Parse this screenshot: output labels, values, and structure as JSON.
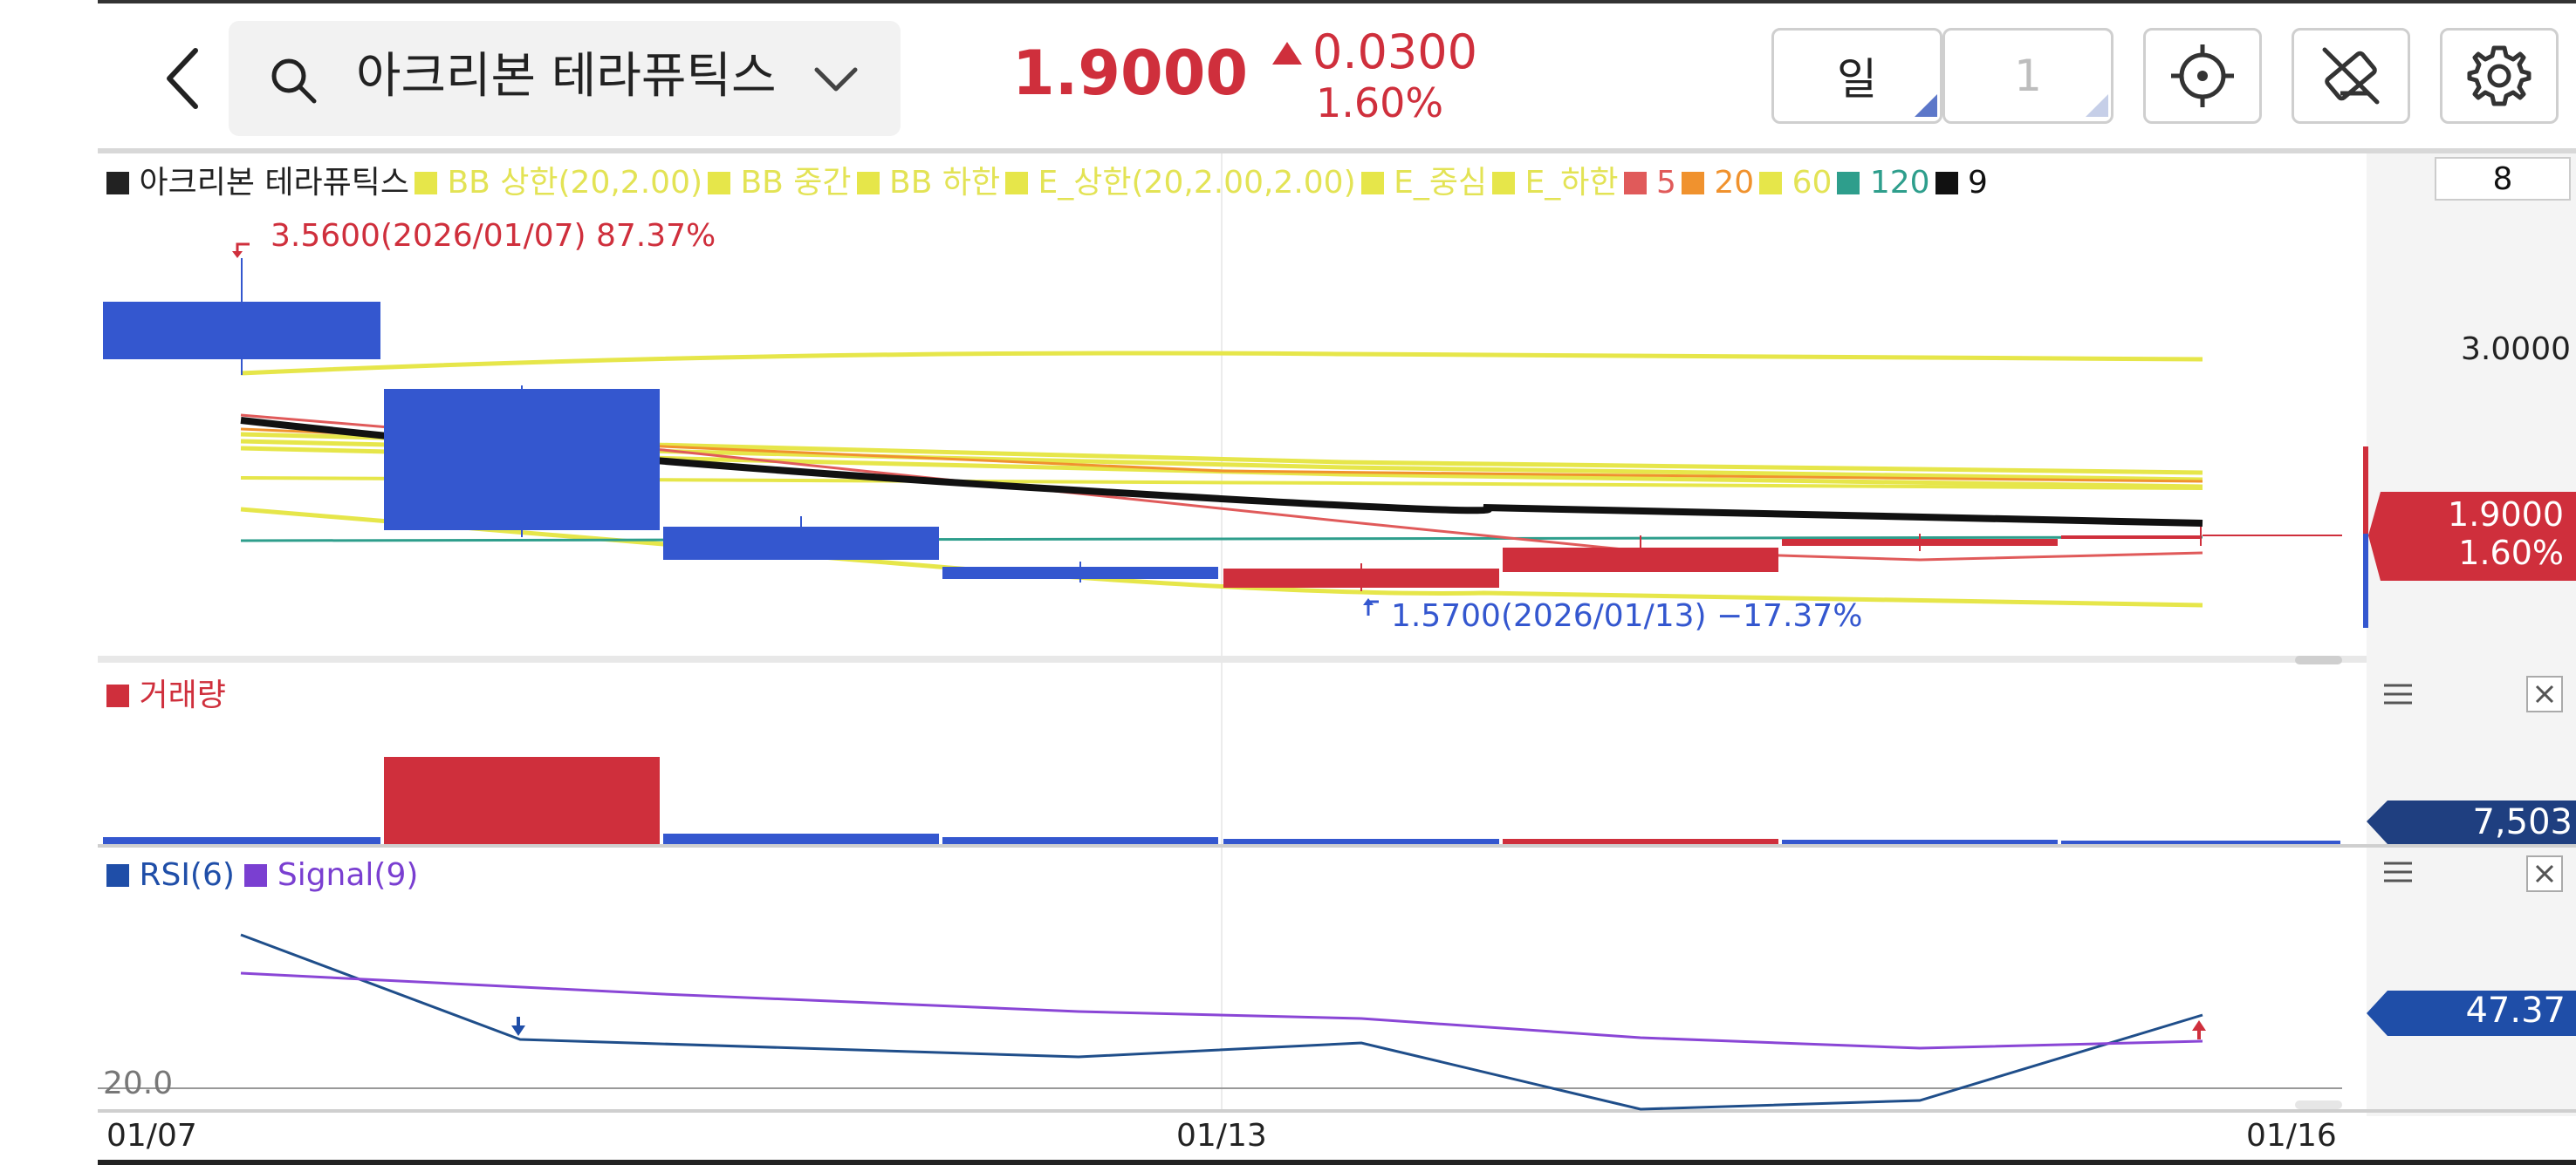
{
  "header": {
    "stock_name": "아크리본 테라퓨틱스",
    "price": "1.9000",
    "change": "0.0300",
    "change_pct": "1.60%",
    "period_label": "일",
    "period_count": "1",
    "icons": [
      "back-icon",
      "search-icon",
      "chevron-down-icon",
      "crosshair-icon",
      "drawing-tools-off-icon",
      "gear-icon"
    ]
  },
  "main_panel": {
    "legend": [
      {
        "label": "아크리본 테라퓨틱스",
        "color": "#222222",
        "text_color": "#222222"
      },
      {
        "label": "BB 상한(20,2.00)",
        "color": "#e6e64a",
        "text_color": "#e3e355"
      },
      {
        "label": "BB 중간",
        "color": "#e6e64a",
        "text_color": "#e3e355"
      },
      {
        "label": "BB 하한",
        "color": "#e6e64a",
        "text_color": "#e3e355"
      },
      {
        "label": "E_상한(20,2.00,2.00)",
        "color": "#e6e64a",
        "text_color": "#e3e355"
      },
      {
        "label": "E_중심",
        "color": "#e6e64a",
        "text_color": "#e3e355"
      },
      {
        "label": "E_하한",
        "color": "#e6e64a",
        "text_color": "#e3e355"
      },
      {
        "label": "5",
        "color": "#e05a5a",
        "text_color": "#e05a5a"
      },
      {
        "label": "20",
        "color": "#f0922e",
        "text_color": "#f0922e"
      },
      {
        "label": "60",
        "color": "#e6e64a",
        "text_color": "#e3e355"
      },
      {
        "label": "120",
        "color": "#2e9e8c",
        "text_color": "#2e9e8c"
      },
      {
        "label": "9",
        "color": "#111111",
        "text_color": "#111111"
      }
    ],
    "high_annotation": "3.5600(2026/01/07) 87.37%",
    "low_annotation": "1.5700(2026/01/13) −17.37%",
    "top_right_box": "8",
    "axis_value": "3.0000",
    "price_tag_value": "1.9000",
    "price_tag_pct": "1.60%",
    "colors": {
      "up": "#cf2f3c",
      "down": "#3457cf",
      "black_line": "#111111",
      "bb": "#e6e64a"
    }
  },
  "volume_panel": {
    "legend": "거래량",
    "tag_value": "7,503",
    "menu_icon": "hamburger-icon",
    "close_icon": "close-icon"
  },
  "rsi_panel": {
    "legend": [
      {
        "label": "RSI(6)",
        "color": "#1f4ea8"
      },
      {
        "label": "Signal(9)",
        "color": "#7a3fd1"
      }
    ],
    "level_label": "20.0",
    "tag_value": "47.37",
    "menu_icon": "hamburger-icon",
    "close_icon": "close-icon"
  },
  "x_axis": {
    "labels": [
      "01/07",
      "01/13",
      "01/16"
    ]
  }
}
